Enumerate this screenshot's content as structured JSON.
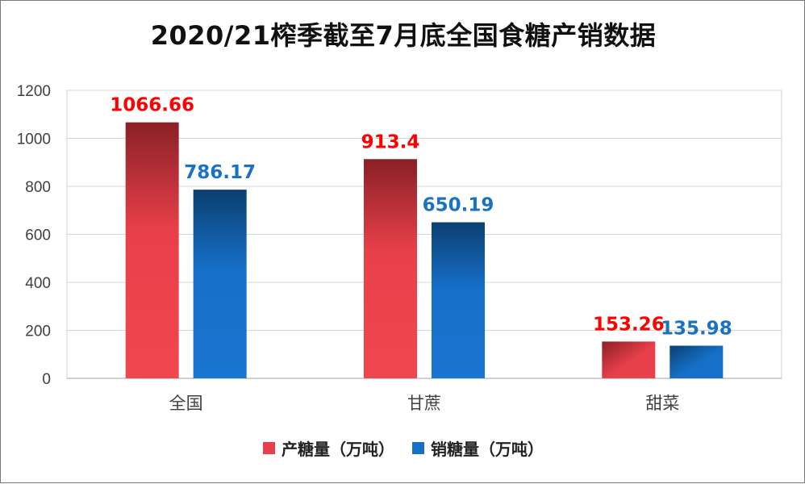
{
  "title": "2020/21榨季截至7月底全国食糖产销数据",
  "colors": {
    "production": "#e8404a",
    "production_dark": "#8a2026",
    "sales": "#1670c8",
    "sales_dark": "#0b3f70",
    "production_label": "#ff0000",
    "sales_label": "#1a72c4"
  },
  "chart_data": {
    "type": "bar",
    "title": "2020/21榨季截至7月底全国食糖产销数据",
    "categories": [
      "全国",
      "甘蔗",
      "甜菜"
    ],
    "series": [
      {
        "name": "产糖量（万吨）",
        "values": [
          1066.66,
          913.4,
          153.26
        ],
        "labels": [
          "1066.66",
          "913.4",
          "153.26"
        ]
      },
      {
        "name": "销糖量（万吨）",
        "values": [
          786.17,
          650.19,
          135.98
        ],
        "labels": [
          "786.17",
          "650.19",
          "135.98"
        ]
      }
    ],
    "ylim": [
      0,
      1200
    ],
    "yticks": [
      0,
      200,
      400,
      600,
      800,
      1000,
      1200
    ],
    "grid": true,
    "legend": "bottom",
    "xlabel": "",
    "ylabel": ""
  },
  "legend": [
    {
      "label": "产糖量（万吨）"
    },
    {
      "label": "销糖量（万吨）"
    }
  ]
}
